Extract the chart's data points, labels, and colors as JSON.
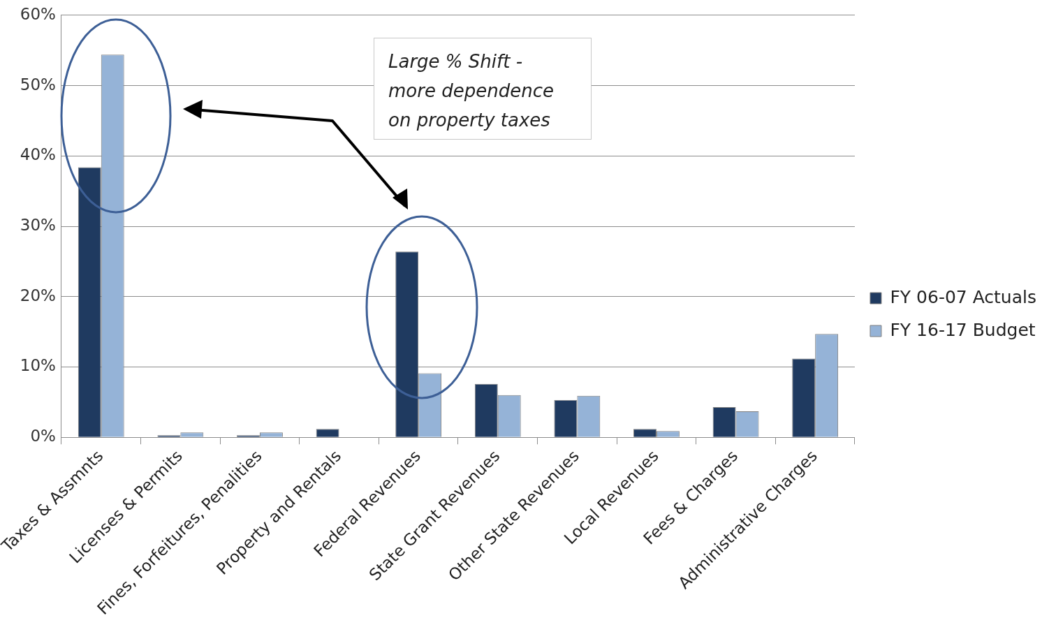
{
  "chart_data": {
    "type": "bar",
    "categories": [
      "Taxes & Assmnts",
      "Licenses & Permits",
      "Fines, Forfeitures, Penalities",
      "Property and Rentals",
      "Federal Revenues",
      "State Grant Revenues",
      "Other State Revenues",
      "Local Revenues",
      "Fees & Charges",
      "Administrative Charges"
    ],
    "series": [
      {
        "name": "FY 06-07 Actuals",
        "color": "#1f3a60",
        "values": [
          38.4,
          0.3,
          0.3,
          1.2,
          26.4,
          7.6,
          5.3,
          1.2,
          4.3,
          11.2
        ]
      },
      {
        "name": "FY 16-17 Budget",
        "color": "#95b3d7",
        "values": [
          54.4,
          0.7,
          0.7,
          null,
          9.1,
          6.0,
          5.9,
          0.9,
          3.7,
          14.7
        ]
      }
    ],
    "ylim": [
      0,
      60
    ],
    "yticks": [
      {
        "value": 0,
        "label": "0%"
      },
      {
        "value": 10,
        "label": "10%"
      },
      {
        "value": 20,
        "label": "20%"
      },
      {
        "value": 30,
        "label": "30%"
      },
      {
        "value": 40,
        "label": "40%"
      },
      {
        "value": 50,
        "label": "50%"
      },
      {
        "value": 60,
        "label": "60%"
      }
    ],
    "grid": "y",
    "legend": "right",
    "annotations": [
      "Large % Shift -\nmore dependence\non property taxes"
    ]
  }
}
